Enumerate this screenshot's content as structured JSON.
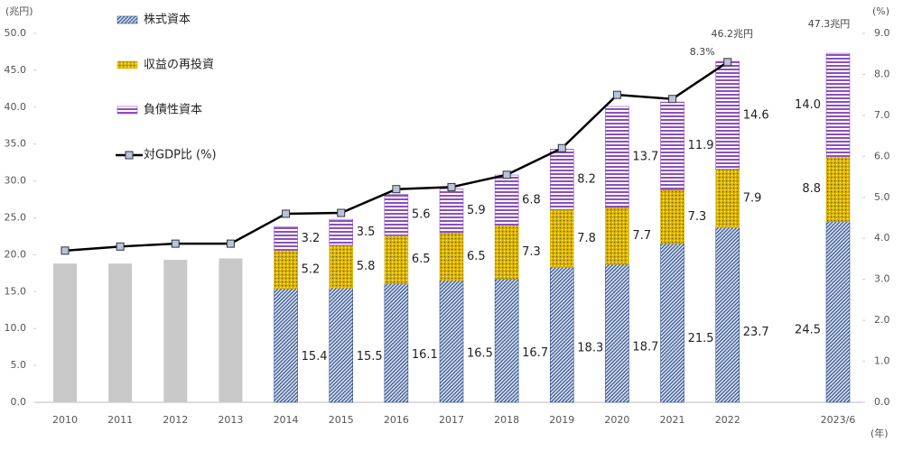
{
  "chart_data": {
    "type": "bar",
    "categories": [
      "2010",
      "2011",
      "2012",
      "2013",
      "2014",
      "2015",
      "2016",
      "2017",
      "2018",
      "2019",
      "2020",
      "2021",
      "2022",
      null,
      "2023/6"
    ],
    "series": [
      {
        "name": "株式資本",
        "color": "#34548f",
        "pattern": "diagonal",
        "values": [
          null,
          null,
          null,
          null,
          15.4,
          15.5,
          16.1,
          16.5,
          16.7,
          18.3,
          18.7,
          21.5,
          23.7,
          null,
          24.5
        ]
      },
      {
        "name": "収益の再投資",
        "color": "#d9b100",
        "pattern": "dots",
        "values": [
          null,
          null,
          null,
          null,
          5.2,
          5.8,
          6.5,
          6.5,
          7.3,
          7.8,
          7.7,
          7.3,
          7.9,
          null,
          8.8
        ]
      },
      {
        "name": "負債性資本",
        "color": "#8c4fbf",
        "pattern": "horizontal",
        "values": [
          null,
          null,
          null,
          null,
          3.2,
          3.5,
          5.6,
          5.9,
          6.8,
          8.2,
          13.7,
          11.9,
          14.6,
          null,
          14.0
        ],
        "value_labels": [
          null,
          null,
          null,
          null,
          "3.2",
          "3.5",
          "5.6",
          "5.9",
          "6.8",
          "8.2",
          "13.7",
          "11.9",
          "14.6",
          null,
          "14.0"
        ]
      },
      {
        "color": "#c8c8c8",
        "pattern": "solid",
        "values": [
          18.8,
          18.8,
          19.3,
          19.5,
          null,
          null,
          null,
          null,
          null,
          null,
          null,
          null,
          null,
          null,
          null
        ]
      },
      {
        "name": "対GDP比 (%)",
        "type": "line",
        "axis": "y2",
        "color": "#000000",
        "marker_color": "#b8c4dc",
        "values": [
          3.7,
          3.8,
          3.87,
          3.87,
          4.6,
          4.62,
          5.2,
          5.25,
          5.55,
          6.2,
          7.5,
          7.4,
          8.3,
          null,
          null
        ],
        "value_labels": [
          null,
          null,
          null,
          null,
          null,
          null,
          null,
          null,
          null,
          null,
          null,
          null,
          "8.3%",
          null,
          null
        ]
      }
    ],
    "annotations": [
      "46.2兆円",
      "47.3兆円"
    ],
    "ylabel": "(兆円)",
    "y2label": "(%)",
    "xlabel": "(年)",
    "ylim": [
      0,
      50
    ],
    "yticks": [
      {
        "value": 0,
        "label": "0.0"
      },
      {
        "value": 5,
        "label": "5.0"
      },
      {
        "value": 10,
        "label": "10.0"
      },
      {
        "value": 15,
        "label": "15.0"
      },
      {
        "value": 20,
        "label": "20.0"
      },
      {
        "value": 25,
        "label": "25.0"
      },
      {
        "value": 30,
        "label": "30.0"
      },
      {
        "value": 35,
        "label": "35.0"
      },
      {
        "value": 40,
        "label": "40.0"
      },
      {
        "value": 45,
        "label": "45.0"
      },
      {
        "value": 50,
        "label": "50.0"
      }
    ],
    "y2lim": [
      0,
      9
    ],
    "y2ticks": [
      {
        "value": 0,
        "label": "0.0"
      },
      {
        "value": 1,
        "label": "1.0"
      },
      {
        "value": 2,
        "label": "2.0"
      },
      {
        "value": 3,
        "label": "3.0"
      },
      {
        "value": 4,
        "label": "4.0"
      },
      {
        "value": 5,
        "label": "5.0"
      },
      {
        "value": 6,
        "label": "6.0"
      },
      {
        "value": 7,
        "label": "7.0"
      },
      {
        "value": 8,
        "label": "8.0"
      },
      {
        "value": 9,
        "label": "9.0"
      }
    ],
    "legend": "upper-left",
    "grid": false
  }
}
